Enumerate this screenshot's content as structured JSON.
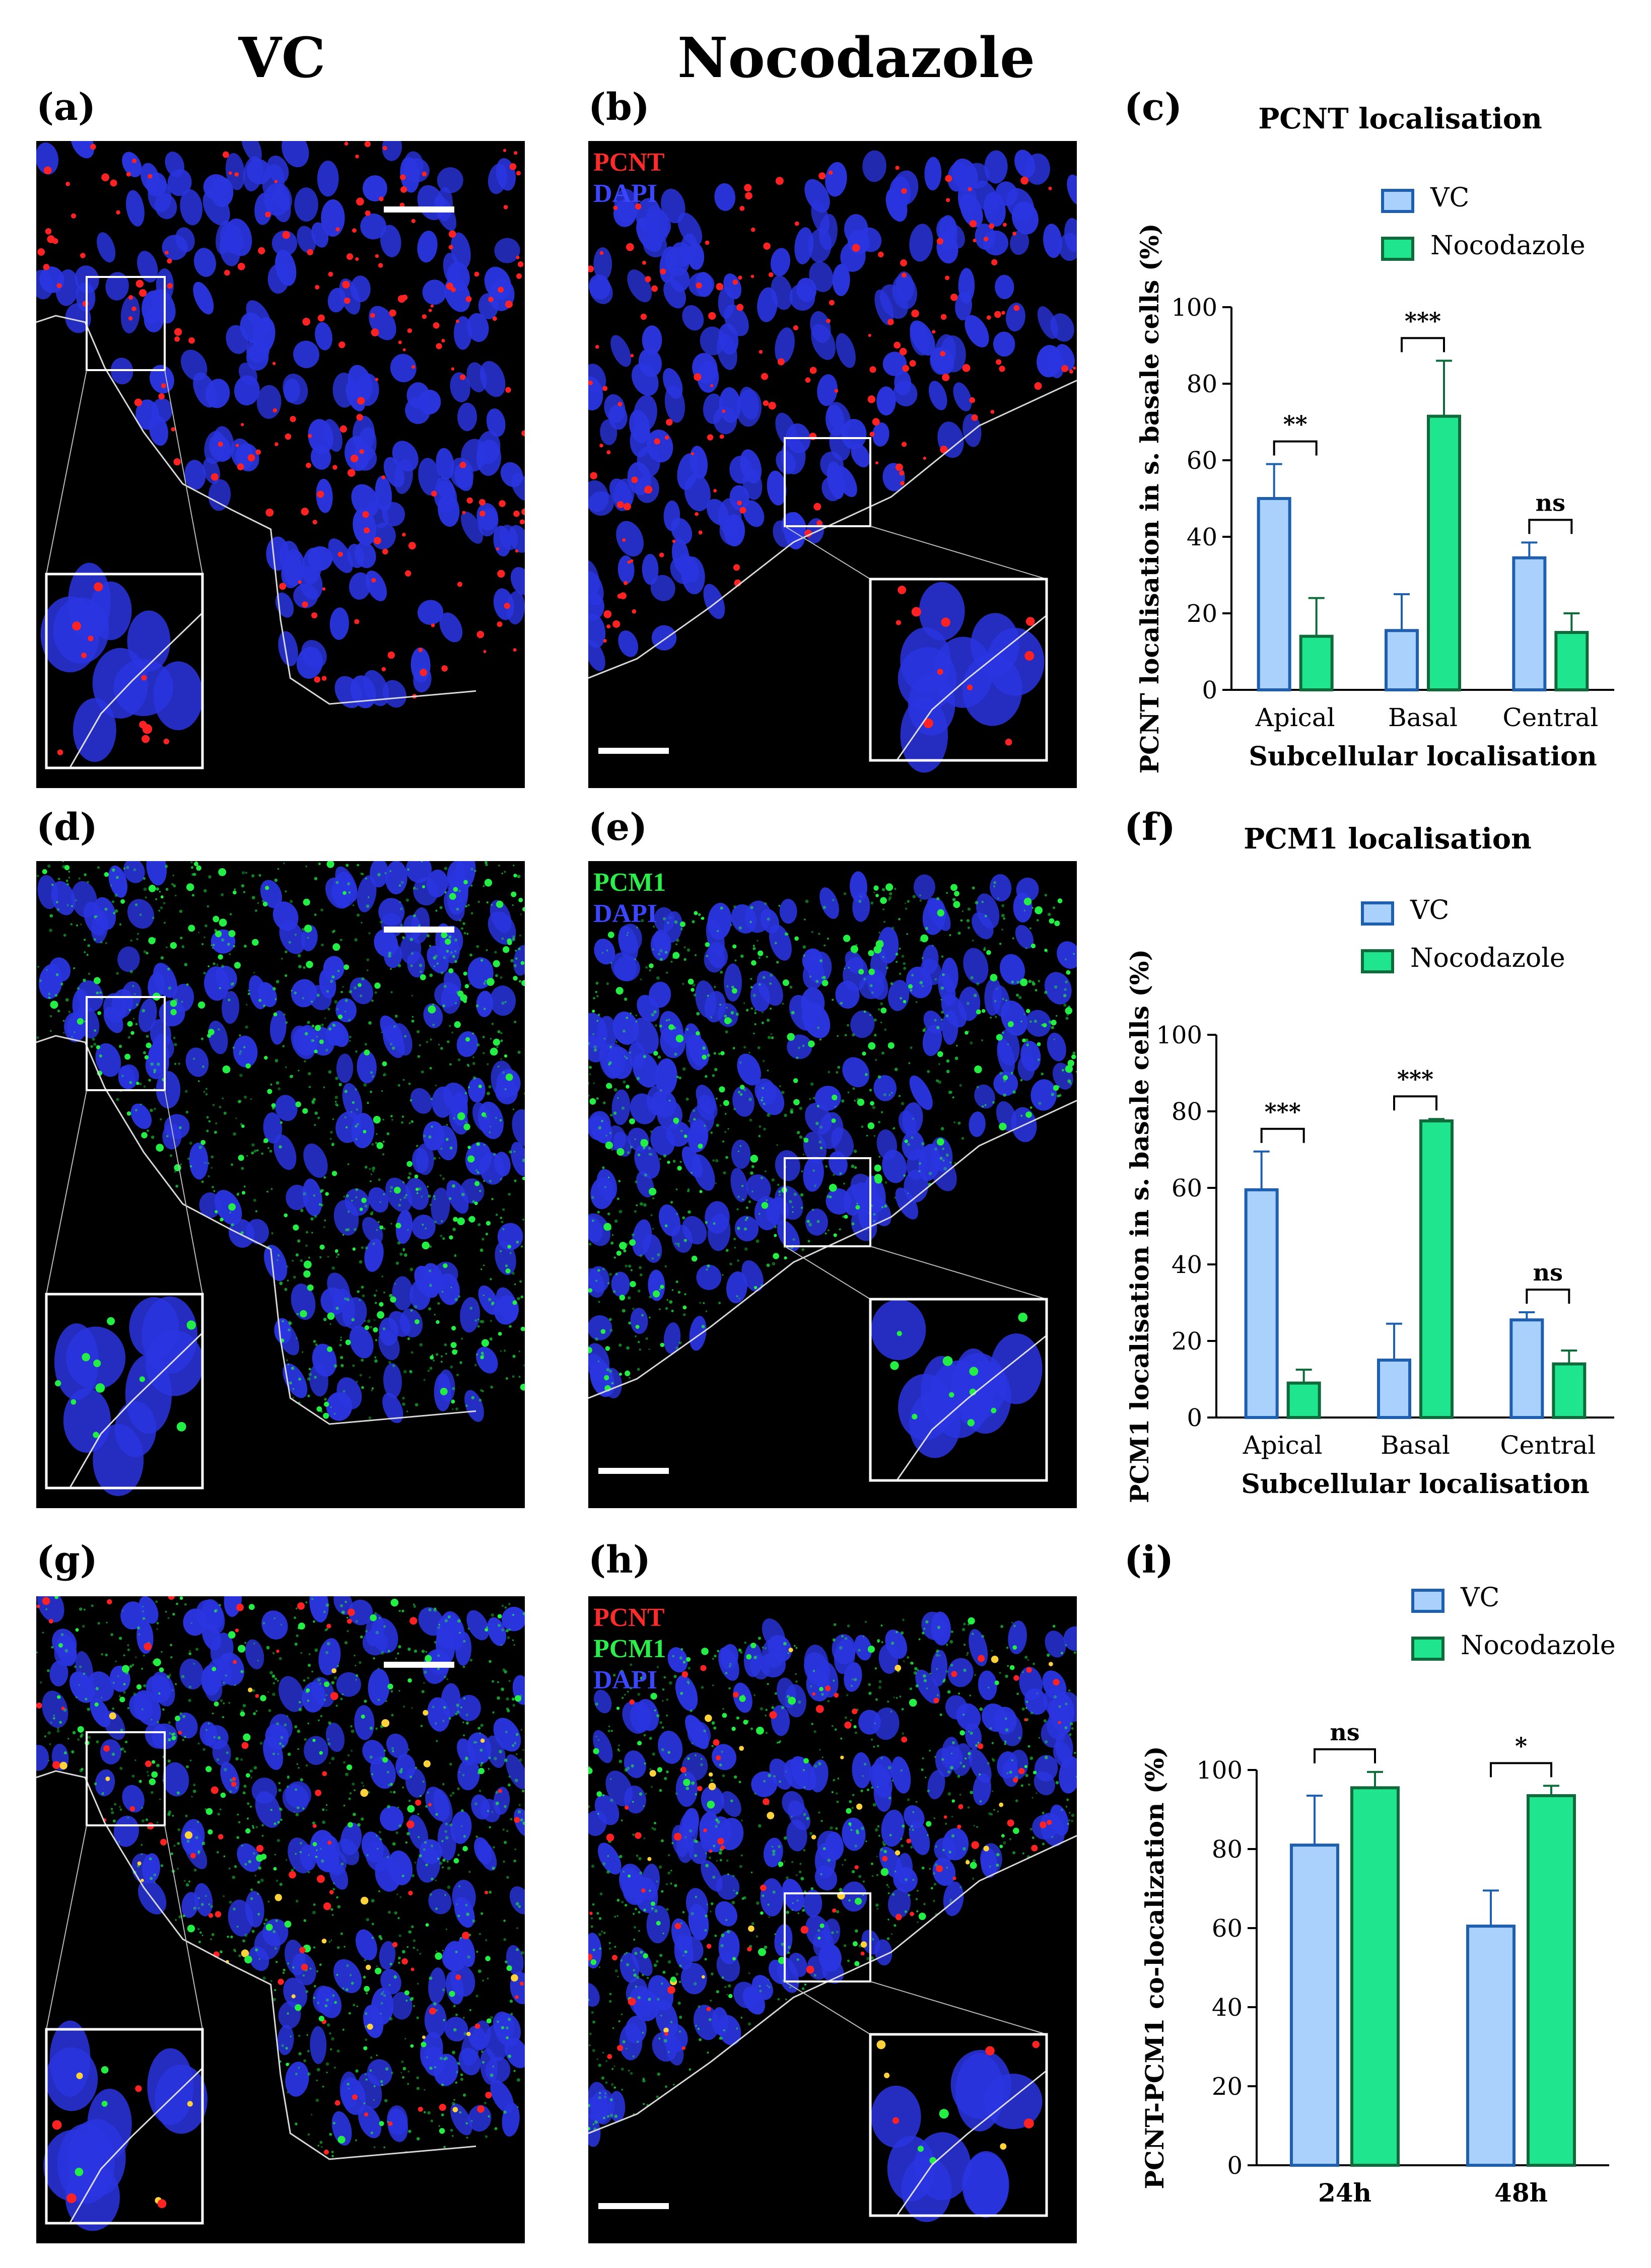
{
  "column_headers": {
    "left": "VC",
    "middle": "Nocodazole"
  },
  "panel_labels": {
    "a": "(a)",
    "b": "(b)",
    "c": "(c)",
    "d": "(d)",
    "e": "(e)",
    "f": "(f)",
    "g": "(g)",
    "h": "(h)",
    "i": "(i)"
  },
  "channel_labels": {
    "b": [
      "PCNT",
      "DAPI"
    ],
    "e": [
      "PCM1",
      "DAPI"
    ],
    "h": [
      "PCNT",
      "PCM1",
      "DAPI"
    ]
  },
  "colors": {
    "vc_fill": "#a9d1fb",
    "vc_stroke": "#1f5fb0",
    "noco_fill": "#1fe58f",
    "noco_stroke": "#0f6a3c",
    "pcnt": "#ff2222",
    "pcm1": "#22ee44",
    "dapi": "#2a35e0"
  },
  "chart_data": [
    {
      "type": "bar",
      "title": "PCNT localisation",
      "xlabel": "Subcellular localisation",
      "ylabel": "PCNT localisation in s. basale cells (%)",
      "categories": [
        "Apical",
        "Basal",
        "Central"
      ],
      "ylim": [
        0,
        100
      ],
      "yticks": [
        "0",
        "20",
        "40",
        "60",
        "80",
        "100"
      ],
      "series": [
        {
          "name": "VC",
          "values": [
            50,
            15.5,
            34.5
          ],
          "errors": [
            9,
            9.5,
            4
          ]
        },
        {
          "name": "Nocodazole",
          "values": [
            14,
            71.5,
            15
          ],
          "errors": [
            10,
            14.5,
            5
          ]
        }
      ],
      "significance": [
        "**",
        "***",
        "ns"
      ]
    },
    {
      "type": "bar",
      "title": "PCM1 localisation",
      "xlabel": "Subcellular localisation",
      "ylabel": "PCM1 localisation in s. basale cells (%)",
      "categories": [
        "Apical",
        "Basal",
        "Central"
      ],
      "ylim": [
        0,
        100
      ],
      "yticks": [
        "0",
        "20",
        "40",
        "60",
        "80",
        "100"
      ],
      "series": [
        {
          "name": "VC",
          "values": [
            59.5,
            15,
            25.5
          ],
          "errors": [
            10,
            9.5,
            2
          ]
        },
        {
          "name": "Nocodazole",
          "values": [
            9,
            77.5,
            14
          ],
          "errors": [
            3.5,
            0.5,
            3.5
          ]
        }
      ],
      "significance": [
        "***",
        "***",
        "ns"
      ]
    },
    {
      "type": "bar",
      "title": "",
      "xlabel": "",
      "ylabel": "PCNT-PCM1 co-localization (%)",
      "categories": [
        "24h",
        "48h"
      ],
      "ylim": [
        0,
        100
      ],
      "yticks": [
        "0",
        "20",
        "40",
        "60",
        "80",
        "100"
      ],
      "series": [
        {
          "name": "VC",
          "values": [
            81,
            60.5
          ],
          "errors": [
            12.5,
            9
          ]
        },
        {
          "name": "Nocodazole",
          "values": [
            95.5,
            93.5
          ],
          "errors": [
            4,
            2.5
          ]
        }
      ],
      "significance": [
        "ns",
        "*"
      ]
    }
  ]
}
